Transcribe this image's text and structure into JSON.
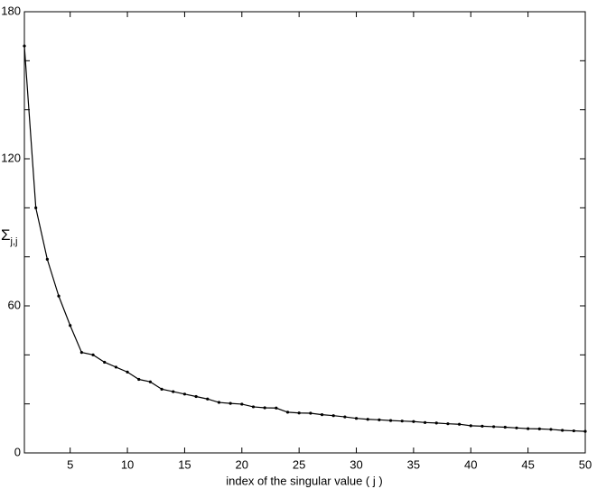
{
  "chart_data": {
    "type": "line",
    "xlabel": "index of the singular value  ( j )",
    "ylabel": "Σ",
    "ylabel_subscript": "j,j",
    "x": [
      1,
      2,
      3,
      4,
      5,
      6,
      7,
      8,
      9,
      10,
      11,
      12,
      13,
      14,
      15,
      16,
      17,
      18,
      19,
      20,
      21,
      22,
      23,
      24,
      25,
      26,
      27,
      28,
      29,
      30,
      31,
      32,
      33,
      34,
      35,
      36,
      37,
      38,
      39,
      40,
      41,
      42,
      43,
      44,
      45,
      46,
      47,
      48,
      49,
      50
    ],
    "series": [
      {
        "color": "#000000",
        "values": [
          166,
          100,
          79,
          64,
          52,
          41,
          40,
          37,
          35,
          33,
          30,
          29,
          26,
          25,
          24,
          23,
          22,
          20.6,
          20.2,
          19.9,
          18.8,
          18.4,
          18.3,
          16.6,
          16.3,
          16.2,
          15.6,
          15.2,
          14.7,
          14.1,
          13.7,
          13.5,
          13.2,
          13.0,
          12.8,
          12.4,
          12.2,
          11.9,
          11.7,
          11.1,
          10.9,
          10.7,
          10.5,
          10.2,
          9.9,
          9.8,
          9.6,
          9.2,
          9.0,
          8.8
        ]
      }
    ],
    "xlim": [
      1,
      50
    ],
    "xticks": [
      5,
      10,
      15,
      20,
      25,
      30,
      35,
      40,
      45,
      50
    ],
    "ylim": [
      0,
      180
    ],
    "yticks": [
      0,
      60,
      120,
      180
    ],
    "yminor_ticks": [
      20,
      40,
      80,
      100,
      140,
      160
    ],
    "grid": false
  }
}
